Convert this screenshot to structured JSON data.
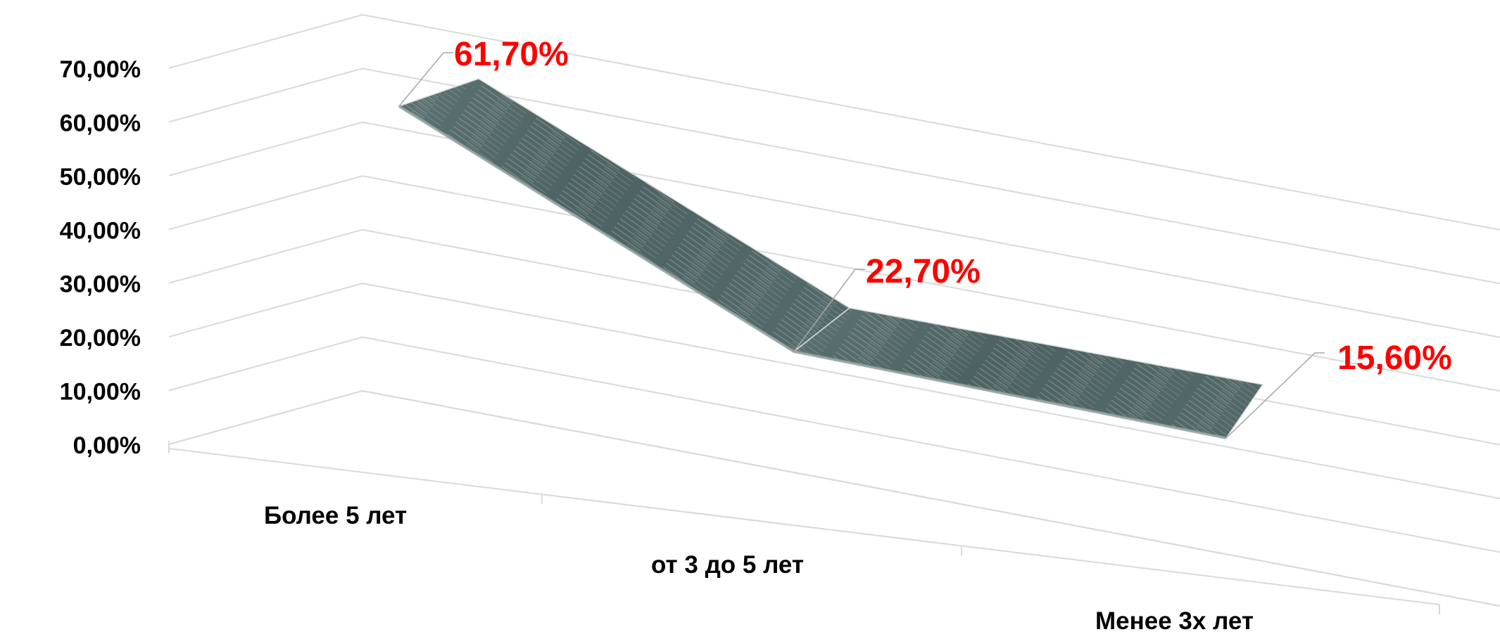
{
  "chart_data": {
    "type": "line",
    "style": "3d-ribbon",
    "categories": [
      "Более 5 лет",
      "от 3 до 5 лет",
      "Менее 3х лет"
    ],
    "values": [
      61.7,
      22.7,
      15.6
    ],
    "value_labels": [
      "61,70%",
      "22,70%",
      "15,60%"
    ],
    "ylim": [
      0,
      70
    ],
    "ytick_labels": [
      "0,00%",
      "10,00%",
      "20,00%",
      "30,00%",
      "40,00%",
      "50,00%",
      "60,00%",
      "70,00%"
    ],
    "grid": true,
    "legend": "none",
    "colors": {
      "ribbon_top": "#4f6464",
      "ribbon_edge": "#d7dede",
      "ribbon_front": "#8a9a9a",
      "gridline": "#d9d9d9",
      "label": "#ff0000"
    }
  }
}
